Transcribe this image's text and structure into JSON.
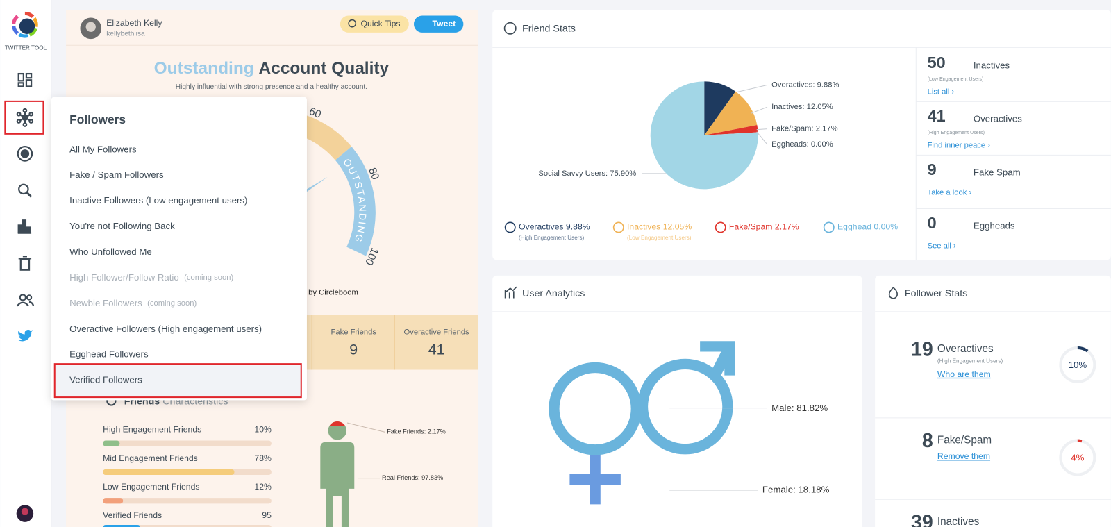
{
  "sidebar": {
    "brand": "TWITTER TOOL"
  },
  "profile": {
    "name": "Elizabeth Kelly",
    "handle": "kellybethlisa",
    "quick_tips": "Quick Tips",
    "tweet": "Tweet"
  },
  "quality": {
    "title_highlight": "Outstanding",
    "title_rest": "Account Quality",
    "subtitle": "Highly influential with strong presence and a healthy account.",
    "gauge_ticks": [
      60,
      80,
      100
    ],
    "gauge_band": "OUTSTANDING",
    "credit": "d by Circleboom"
  },
  "friend_counts": [
    {
      "label": "Fake Friends",
      "value": 9
    },
    {
      "label": "Overactive Friends",
      "value": 41
    }
  ],
  "characteristics": {
    "title_bold": "Friends",
    "title_rest": "Characteristics",
    "xlim": [
      0,
      100
    ],
    "bars": [
      {
        "label": "High Engagement Friends",
        "value": 10,
        "value_label": "10%",
        "color": "#8fbf8a"
      },
      {
        "label": "Mid Engagement Friends",
        "value": 78,
        "value_label": "78%",
        "color": "#f5cc7b"
      },
      {
        "label": "Low Engagement Friends",
        "value": 12,
        "value_label": "12%",
        "color": "#f2a07b"
      }
    ],
    "verified": {
      "label": "Verified Friends",
      "value": 95
    },
    "figure": {
      "fake": "Fake Friends: 2.17%",
      "real": "Real Friends: 97.83%"
    }
  },
  "menu": {
    "title": "Followers",
    "items": [
      {
        "label": "All My Followers"
      },
      {
        "label": "Fake / Spam Followers"
      },
      {
        "label": "Inactive Followers (Low engagement users)"
      },
      {
        "label": "You're not Following Back"
      },
      {
        "label": "Who Unfollowed Me"
      },
      {
        "label": "High Follower/Follow Ratio",
        "note": "(coming soon)"
      },
      {
        "label": "Newbie Followers",
        "note": "(coming soon)"
      },
      {
        "label": "Overactive Followers (High engagement users)"
      },
      {
        "label": "Egghead Followers"
      },
      {
        "label": "Verified Followers"
      }
    ]
  },
  "friend_stats": {
    "title": "Friend Stats",
    "pie": [
      {
        "label": "Overactives: 9.88%",
        "value": 9.88,
        "color": "#1e3a5f"
      },
      {
        "label": "Inactives: 12.05%",
        "value": 12.05,
        "color": "#f0b254"
      },
      {
        "label": "Fake/Spam: 2.17%",
        "value": 2.17,
        "color": "#e0332b"
      },
      {
        "label": "Eggheads: 0.00%",
        "value": 0,
        "color": "#7fc4dd"
      },
      {
        "label": "Social Savvy Users: 75.90%",
        "value": 75.9,
        "color": "#a2d6e6"
      }
    ],
    "legend": [
      {
        "text": "Overactives 9.88%",
        "sub": "(High Engagement Users)",
        "color": "#1e3a5f"
      },
      {
        "text": "Inactives 12.05%",
        "sub": "(Low Engagement Users)",
        "color": "#f0b254"
      },
      {
        "text": "Fake/Spam 2.17%",
        "color": "#e0332b"
      },
      {
        "text": "Egghead 0.00%",
        "color": "#6ab4dc"
      }
    ],
    "counts": [
      {
        "value": 50,
        "label": "Inactives",
        "sub": "(Low Engagement Users)",
        "link": "List all ›"
      },
      {
        "value": 41,
        "label": "Overactives",
        "sub": "(High Engagement Users)",
        "link": "Find inner peace ›"
      },
      {
        "value": 9,
        "label": "Fake Spam",
        "link": "Take a look ›"
      },
      {
        "value": 0,
        "label": "Eggheads",
        "link": "See all ›"
      }
    ]
  },
  "user_analytics": {
    "title": "User Analytics",
    "male": "Male: 81.82%",
    "female": "Female: 18.18%"
  },
  "follower_stats": {
    "title": "Follower Stats",
    "rows": [
      {
        "value": 19,
        "label": "Overactives",
        "sub": "(High Engagement Users)",
        "link": "Who are them",
        "percent": 10,
        "percent_label": "10%",
        "color": "#1e3a5f"
      },
      {
        "value": 8,
        "label": "Fake/Spam",
        "link": "Remove them",
        "percent": 4,
        "percent_label": "4%",
        "color": "#e0332b"
      },
      {
        "value": 39,
        "label": "Inactives"
      }
    ]
  }
}
